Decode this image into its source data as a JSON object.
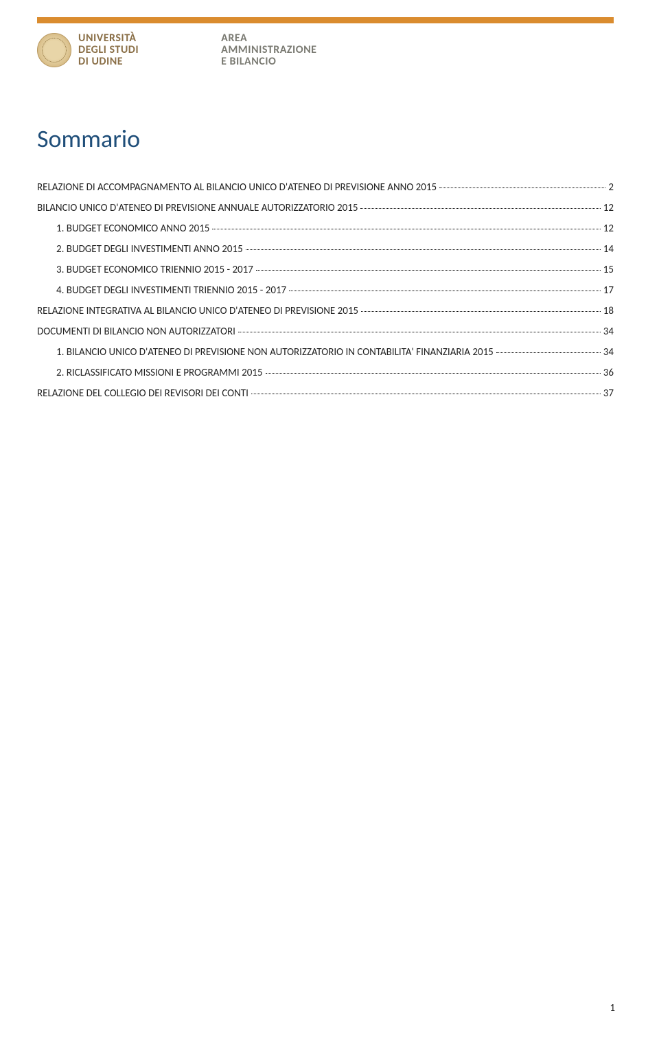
{
  "colors": {
    "accent_bar": "#da8c2f",
    "title": "#1f4e79",
    "uniud_text": "#8a6f47",
    "area_text": "#7a7a72",
    "leader": "#000000",
    "background": "#ffffff"
  },
  "header": {
    "uniud": {
      "line1": "UNIVERSITÀ",
      "line2": "DEGLI STUDI",
      "line3": "DI UDINE"
    },
    "area": {
      "line1": "AREA",
      "line2": "AMMINISTRAZIONE",
      "line3": "E BILANCIO"
    }
  },
  "title": "Sommario",
  "toc": [
    {
      "label": "RELAZIONE DI ACCOMPAGNAMENTO AL BILANCIO UNICO D'ATENEO DI PREVISIONE ANNO 2015",
      "page": "2",
      "indent": false
    },
    {
      "label": "BILANCIO UNICO D'ATENEO DI PREVISIONE ANNUALE AUTORIZZATORIO 2015",
      "page": "12",
      "indent": false
    },
    {
      "label": "1.   BUDGET ECONOMICO ANNO 2015",
      "page": "12",
      "indent": true
    },
    {
      "label": "2.   BUDGET DEGLI INVESTIMENTI ANNO 2015",
      "page": "14",
      "indent": true
    },
    {
      "label": "3.   BUDGET ECONOMICO TRIENNIO 2015 - 2017",
      "page": "15",
      "indent": true
    },
    {
      "label": "4.   BUDGET DEGLI INVESTIMENTI TRIENNIO 2015 - 2017",
      "page": "17",
      "indent": true
    },
    {
      "label": "RELAZIONE INTEGRATIVA AL BILANCIO UNICO D'ATENEO DI PREVISIONE 2015",
      "page": "18",
      "indent": false
    },
    {
      "label": "DOCUMENTI DI BILANCIO NON AUTORIZZATORI",
      "page": "34",
      "indent": false
    },
    {
      "label": "1.   BILANCIO UNICO D'ATENEO DI PREVISIONE NON AUTORIZZATORIO IN CONTABILITA' FINANZIARIA 2015",
      "page": "34",
      "indent": true
    },
    {
      "label": "2.   RICLASSIFICATO MISSIONI E PROGRAMMI 2015",
      "page": "36",
      "indent": true
    },
    {
      "label": "RELAZIONE DEL COLLEGIO DEI REVISORI DEI CONTI",
      "page": "37",
      "indent": false
    }
  ],
  "page_number": "1"
}
